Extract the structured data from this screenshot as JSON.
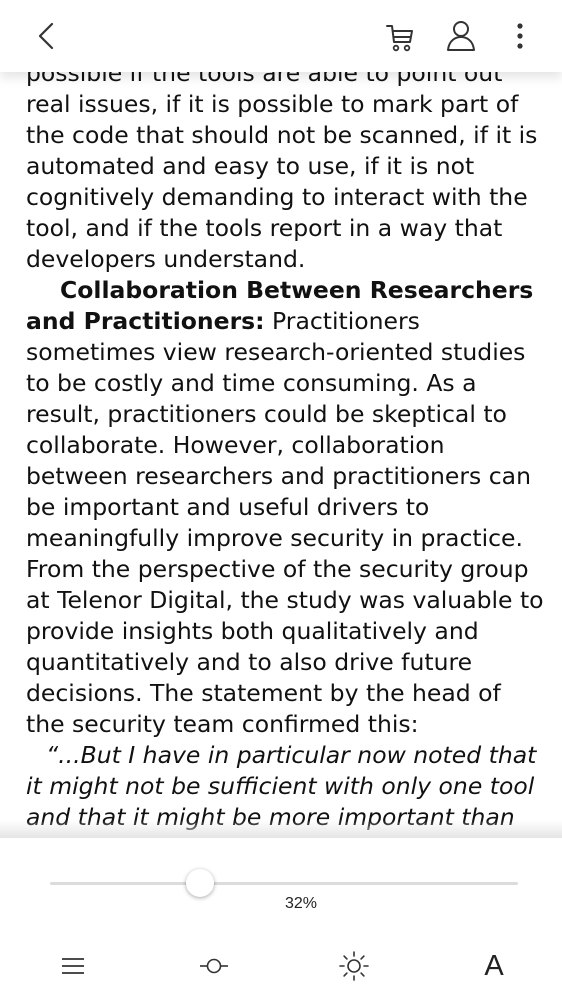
{
  "reader": {
    "paragraph1": "possible if the tools are able to point out real issues, if it is possible to mark part of the code that should not be scanned, if it is automated and easy to use, if it is not cognitively demanding to interact with the tool, and if the tools report in a way that developers understand.",
    "section_heading": "Collaboration Between Researchers and Practitioners:",
    "paragraph2": " Practitioners sometimes view research-oriented studies to be costly and time consuming. As a result, practitioners could be skeptical to collaborate. However, collaboration between researchers and practitioners can be important and useful drivers to meaningfully improve security in practice. From the perspective of the security group at Telenor Digital, the study was valuable to provide insights both qualitatively and quantitatively and to also drive future decisions. The statement by the head of the security team confirmed this:",
    "quote": "“...But I have in particular now noted that it might not be sufficient with only one tool and that it might be more important than we anticipated before this study to"
  },
  "progress": {
    "value": 0.32,
    "label": "32%"
  },
  "icons": {
    "back": "chevron-left-icon",
    "cart": "shopping-cart-icon",
    "user": "user-icon",
    "more": "more-vertical-icon",
    "toc": "menu-icon",
    "contrast": "contrast-icon",
    "brightness": "brightness-icon"
  },
  "toolbar": {
    "font_label": "A"
  },
  "colors": {
    "icon": "#333333",
    "text": "#111111",
    "track": "#dcdcdc"
  }
}
